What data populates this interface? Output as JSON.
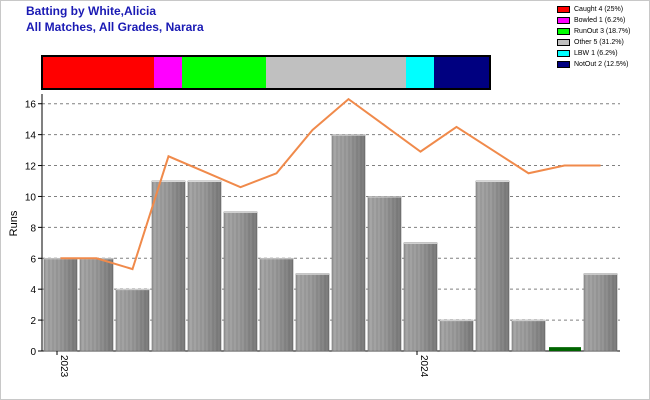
{
  "header": {
    "title": "Batting by White,Alicia",
    "subtitle": "All Matches, All Grades, Narara"
  },
  "legend": [
    {
      "label": "Caught 4 (25%)",
      "color": "#ff0000"
    },
    {
      "label": "Bowled 1 (6.2%)",
      "color": "#ff00ff"
    },
    {
      "label": "RunOut 3 (18.7%)",
      "color": "#00ff00"
    },
    {
      "label": "Other 5 (31.2%)",
      "color": "#c0c0c0"
    },
    {
      "label": "LBW 1 (6.2%)",
      "color": "#00ffff"
    },
    {
      "label": "NotOut 2 (12.5%)",
      "color": "#000080"
    }
  ],
  "dismissal_bar": [
    {
      "name": "Caught",
      "fraction": 0.25,
      "color": "#ff0000"
    },
    {
      "name": "Bowled",
      "fraction": 0.0625,
      "color": "#ff00ff"
    },
    {
      "name": "RunOut",
      "fraction": 0.1875,
      "color": "#00ff00"
    },
    {
      "name": "Other",
      "fraction": 0.3125,
      "color": "#c0c0c0"
    },
    {
      "name": "LBW",
      "fraction": 0.0625,
      "color": "#00ffff"
    },
    {
      "name": "NotOut",
      "fraction": 0.125,
      "color": "#000080"
    }
  ],
  "chart_data": {
    "type": "bar",
    "ylabel": "Runs",
    "ylim": [
      0,
      16.5
    ],
    "yticks": [
      0,
      2,
      4,
      6,
      8,
      10,
      12,
      14,
      16
    ],
    "grid": true,
    "x_labels": [
      {
        "index": 0,
        "text": "2023"
      },
      {
        "index": 10,
        "text": "2024"
      }
    ],
    "values": [
      6,
      6,
      4,
      11,
      11,
      9,
      6,
      5,
      14,
      10,
      7,
      2,
      11,
      2,
      0.25,
      5
    ],
    "highlight_color": "#006400",
    "highlight_indices": [
      14
    ],
    "trend_line": {
      "color": "#f08a4b",
      "values": [
        6,
        6,
        5.3,
        12.6,
        11.6,
        10.6,
        11.5,
        14.3,
        16.3,
        14.6,
        12.9,
        14.5,
        13,
        11.5,
        12,
        12
      ]
    }
  }
}
